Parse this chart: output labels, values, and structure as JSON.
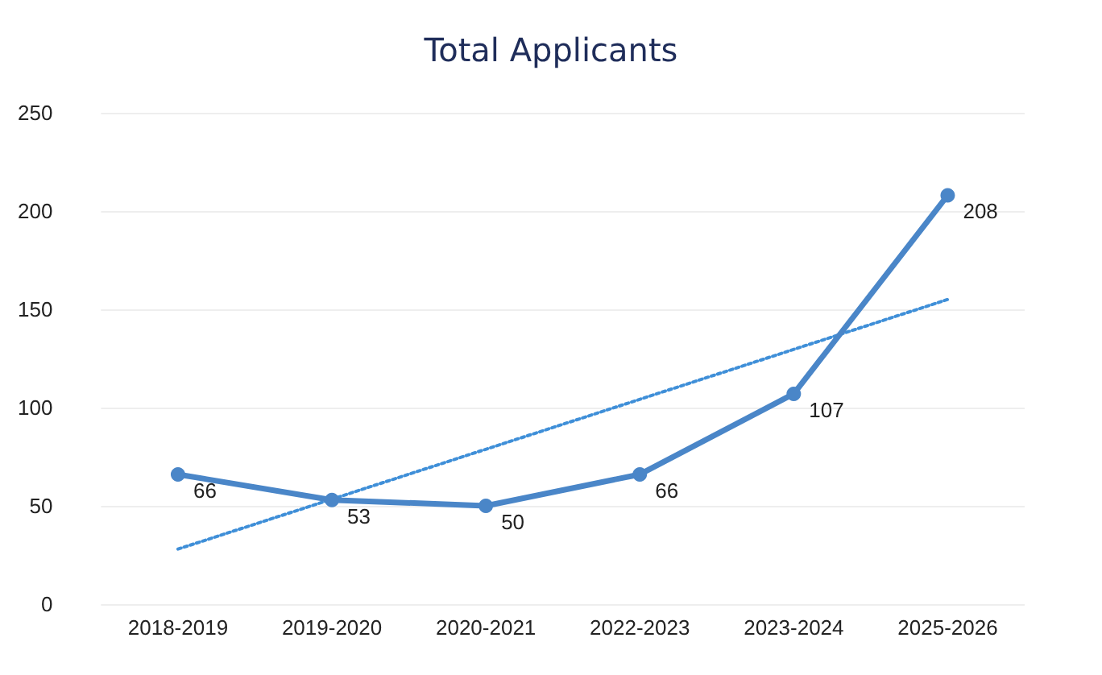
{
  "chart_data": {
    "type": "line",
    "title": "Total Applicants",
    "categories": [
      "2018-2019",
      "2019-2020",
      "2020-2021",
      "2022-2023",
      "2023-2024",
      "2025-2026"
    ],
    "series": [
      {
        "color": "#4a86c8",
        "values": [
          66,
          53,
          50,
          66,
          107,
          208
        ],
        "marker": "circle",
        "line_style": "solid",
        "data_labels": true
      },
      {
        "type": "line",
        "color": "#3f8fd8",
        "x": [
          "2018-2019",
          "2025-2026"
        ],
        "values": [
          28,
          155
        ],
        "marker": "none",
        "line_style": "dotted"
      }
    ],
    "ylim": [
      0,
      250
    ],
    "yticks": [
      0,
      50,
      100,
      150,
      200,
      250
    ],
    "grid": "y"
  }
}
